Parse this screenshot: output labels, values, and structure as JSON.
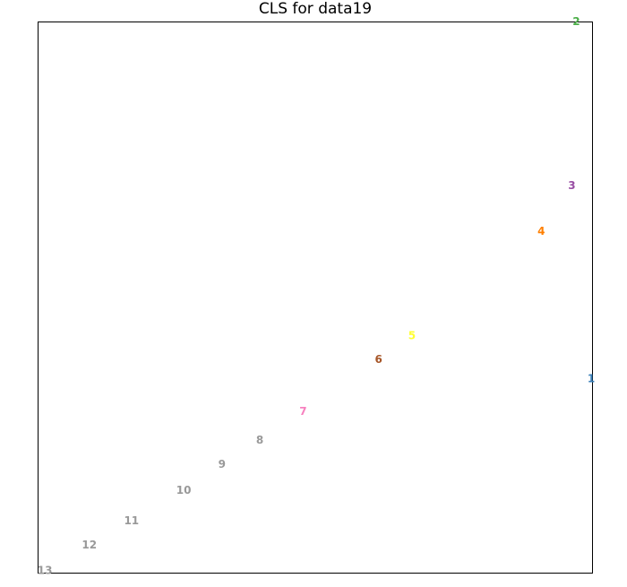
{
  "chart_data": {
    "type": "scatter",
    "title": "CLS for data19",
    "xlabel": "",
    "ylabel": "",
    "xlim": [
      0,
      1
    ],
    "ylim": [
      0,
      1
    ],
    "grid": false,
    "points": [
      {
        "label": "1",
        "x": 0.997,
        "y": 0.353,
        "color": "#377eb8"
      },
      {
        "label": "2",
        "x": 0.97,
        "y": 1.0,
        "color": "#4daf4a"
      },
      {
        "label": "3",
        "x": 0.962,
        "y": 0.703,
        "color": "#984ea3"
      },
      {
        "label": "4",
        "x": 0.907,
        "y": 0.62,
        "color": "#ff7f00"
      },
      {
        "label": "5",
        "x": 0.674,
        "y": 0.431,
        "color": "#ffff33"
      },
      {
        "label": "6",
        "x": 0.614,
        "y": 0.388,
        "color": "#a65628"
      },
      {
        "label": "7",
        "x": 0.478,
        "y": 0.294,
        "color": "#f781bf"
      },
      {
        "label": "8",
        "x": 0.4,
        "y": 0.242,
        "color": "#999999"
      },
      {
        "label": "9",
        "x": 0.332,
        "y": 0.198,
        "color": "#999999"
      },
      {
        "label": "10",
        "x": 0.263,
        "y": 0.151,
        "color": "#999999"
      },
      {
        "label": "11",
        "x": 0.169,
        "y": 0.096,
        "color": "#999999"
      },
      {
        "label": "12",
        "x": 0.093,
        "y": 0.052,
        "color": "#999999"
      },
      {
        "label": "13",
        "x": 0.013,
        "y": 0.006,
        "color": "#999999"
      }
    ]
  }
}
